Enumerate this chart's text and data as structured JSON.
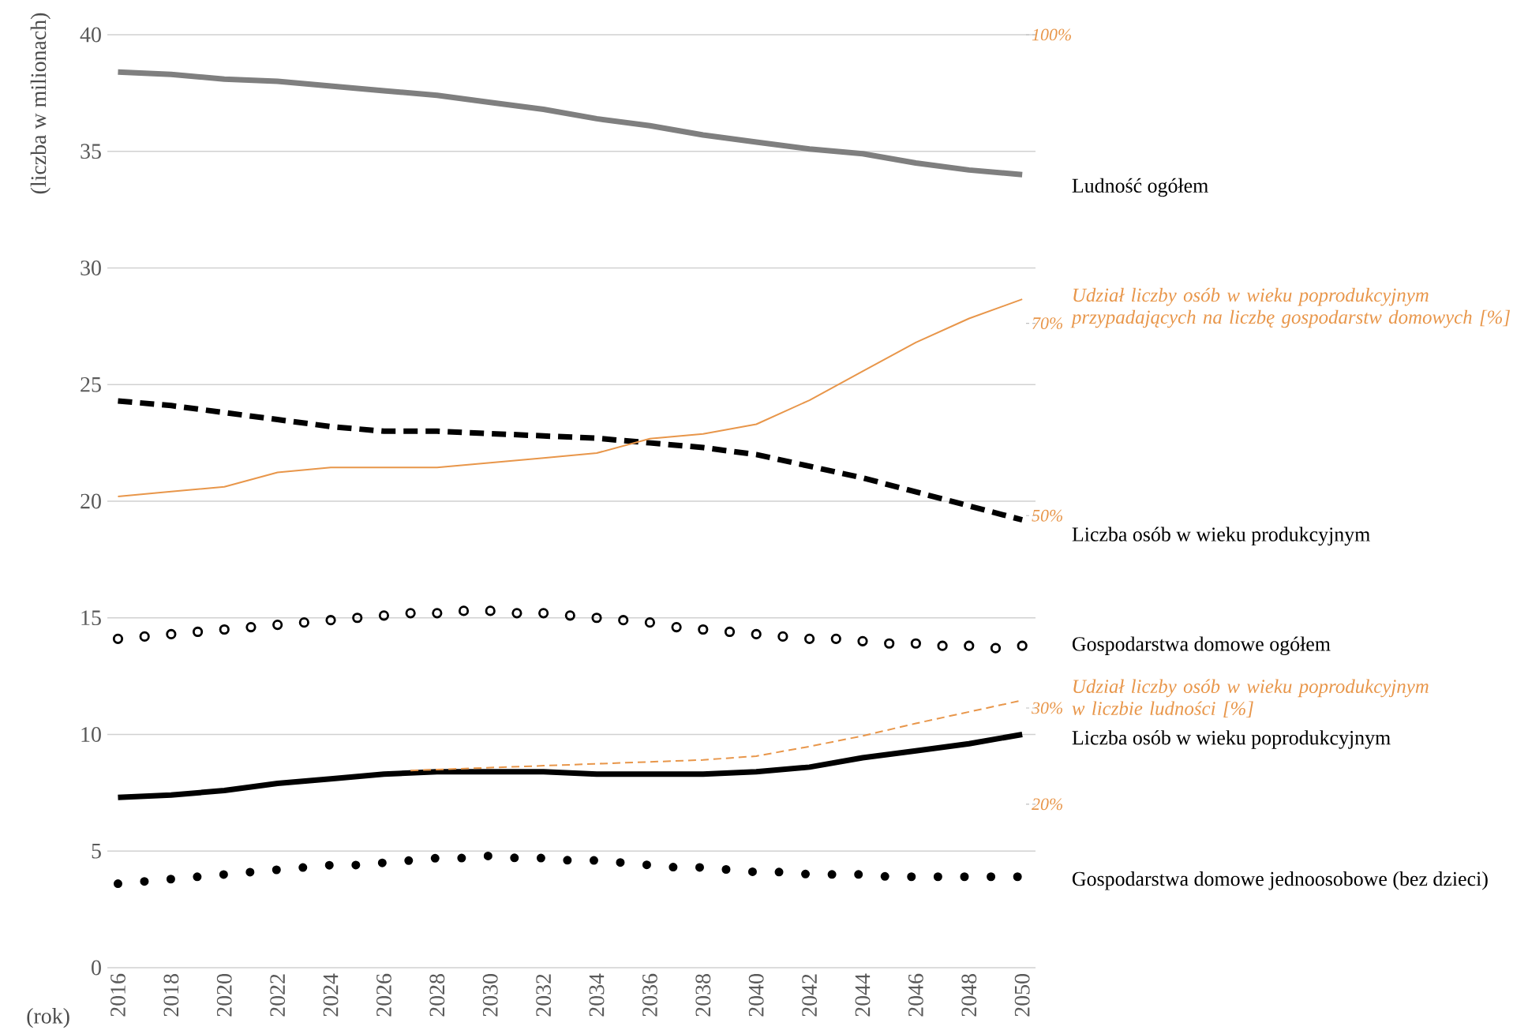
{
  "chart_data": {
    "type": "line",
    "xlabel": "(rok)",
    "ylabel": "(liczba w milionach)",
    "xlim": [
      2015.6,
      2050.5
    ],
    "ylim": [
      0,
      40
    ],
    "y2lim": [
      3,
      100
    ],
    "xticks": [
      2016,
      2018,
      2020,
      2022,
      2024,
      2026,
      2028,
      2030,
      2032,
      2034,
      2036,
      2038,
      2040,
      2042,
      2044,
      2046,
      2048,
      2050
    ],
    "yticks": [
      0,
      5,
      10,
      15,
      20,
      25,
      30,
      35,
      40
    ],
    "y2ticks": [
      {
        "value": 20,
        "label": "20%"
      },
      {
        "value": 30,
        "label": "30%"
      },
      {
        "value": 50,
        "label": "50%"
      },
      {
        "value": 70,
        "label": "70%"
      },
      {
        "value": 100,
        "label": "100%"
      }
    ],
    "grid": "y",
    "series": [
      {
        "name": "Ludność ogółem",
        "color": "#7f7f7f",
        "line_style": "solid",
        "x": [
          2016,
          2018,
          2020,
          2022,
          2024,
          2026,
          2028,
          2030,
          2032,
          2034,
          2036,
          2038,
          2040,
          2042,
          2044,
          2046,
          2048,
          2050
        ],
        "values": [
          38.4,
          38.3,
          38.1,
          38.0,
          37.8,
          37.6,
          37.4,
          37.1,
          36.8,
          36.4,
          36.1,
          35.7,
          35.4,
          35.1,
          34.9,
          34.5,
          34.2,
          34.0
        ]
      },
      {
        "name": "Liczba osób w wieku produkcyjnym",
        "color": "#000000",
        "line_style": "dashed",
        "x": [
          2016,
          2018,
          2020,
          2022,
          2024,
          2026,
          2028,
          2030,
          2032,
          2034,
          2036,
          2038,
          2040,
          2042,
          2044,
          2046,
          2048,
          2050
        ],
        "values": [
          24.3,
          24.1,
          23.8,
          23.5,
          23.2,
          23.0,
          23.0,
          22.9,
          22.8,
          22.7,
          22.5,
          22.3,
          22.0,
          21.5,
          21.0,
          20.4,
          19.8,
          19.2
        ]
      },
      {
        "name": "Udział liczby osób w wieku poprodukcyjnym przypadających na liczbę gospodarstw domowych [%]",
        "color": "#e8964a",
        "line_style": "solid",
        "axis": "y2",
        "x": [
          2016,
          2018,
          2020,
          2022,
          2024,
          2026,
          2028,
          2030,
          2032,
          2034,
          2036,
          2038,
          2040,
          2042,
          2044,
          2046,
          2048,
          2050
        ],
        "values": [
          52,
          52.5,
          53,
          54.5,
          55,
          55,
          55,
          55.5,
          56,
          56.5,
          58,
          58.5,
          59.5,
          62,
          65,
          68,
          70.5,
          72.5
        ]
      },
      {
        "name": "Gospodarstwa domowe ogółem",
        "color": "#000000",
        "type": "scatter",
        "marker": "circle",
        "x": [
          2016,
          2017,
          2018,
          2019,
          2020,
          2021,
          2022,
          2023,
          2024,
          2025,
          2026,
          2027,
          2028,
          2029,
          2030,
          2031,
          2032,
          2033,
          2034,
          2035,
          2036,
          2037,
          2038,
          2039,
          2040,
          2041,
          2042,
          2043,
          2044,
          2045,
          2046,
          2047,
          2048,
          2049,
          2050
        ],
        "values": [
          14.1,
          14.2,
          14.3,
          14.4,
          14.5,
          14.6,
          14.7,
          14.8,
          14.9,
          15.0,
          15.1,
          15.2,
          15.2,
          15.3,
          15.3,
          15.2,
          15.2,
          15.1,
          15.0,
          14.9,
          14.8,
          14.6,
          14.5,
          14.4,
          14.3,
          14.2,
          14.1,
          14.1,
          14.0,
          13.9,
          13.9,
          13.8,
          13.8,
          13.7,
          13.8
        ]
      },
      {
        "name": "Udział liczby osób w wieku poprodukcyjnym w liczbie ludności [%]",
        "color": "#e8964a",
        "line_style": "dashed",
        "axis": "y2",
        "x": [
          2027,
          2028,
          2030,
          2032,
          2034,
          2036,
          2038,
          2040,
          2042,
          2044,
          2046,
          2048,
          2050
        ],
        "values": [
          23.5,
          23.6,
          23.8,
          24.0,
          24.2,
          24.4,
          24.6,
          25.0,
          26.0,
          27.1,
          28.4,
          29.6,
          30.8
        ]
      },
      {
        "name": "Liczba osób w wieku poprodukcyjnym",
        "color": "#000000",
        "line_style": "solid",
        "x": [
          2016,
          2018,
          2020,
          2022,
          2024,
          2026,
          2028,
          2030,
          2032,
          2034,
          2036,
          2038,
          2040,
          2042,
          2044,
          2046,
          2048,
          2050
        ],
        "values": [
          7.3,
          7.4,
          7.6,
          7.9,
          8.1,
          8.3,
          8.4,
          8.4,
          8.4,
          8.3,
          8.3,
          8.3,
          8.4,
          8.6,
          9.0,
          9.3,
          9.6,
          10.0
        ]
      },
      {
        "name": "Gospodarstwa domowe jednoosobowe (bez dzieci)",
        "color": "#000000",
        "line_style": "dotted",
        "x": [
          2016,
          2017,
          2018,
          2019,
          2020,
          2021,
          2022,
          2023,
          2024,
          2025,
          2026,
          2027,
          2028,
          2029,
          2030,
          2031,
          2032,
          2033,
          2034,
          2035,
          2036,
          2037,
          2038,
          2039,
          2040,
          2041,
          2042,
          2043,
          2044,
          2045,
          2046,
          2047,
          2048,
          2049,
          2050
        ],
        "values": [
          3.6,
          3.7,
          3.8,
          3.9,
          4.0,
          4.1,
          4.2,
          4.3,
          4.4,
          4.4,
          4.5,
          4.6,
          4.7,
          4.7,
          4.8,
          4.7,
          4.7,
          4.6,
          4.6,
          4.5,
          4.4,
          4.3,
          4.3,
          4.2,
          4.1,
          4.1,
          4.0,
          4.0,
          4.0,
          3.9,
          3.9,
          3.9,
          3.9,
          3.9,
          3.9
        ]
      }
    ]
  }
}
